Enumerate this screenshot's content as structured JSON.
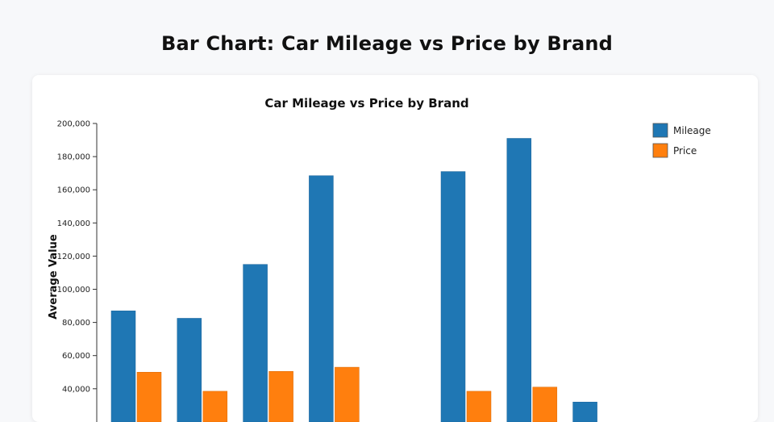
{
  "page": {
    "title": "Bar Chart: Car Mileage vs Price by Brand"
  },
  "chart_data": {
    "type": "bar",
    "title": "Car Mileage vs Price by Brand",
    "ylabel": "Average Value",
    "xlabel": "",
    "ylim": [
      0,
      200000
    ],
    "y_ticks": [
      40000,
      60000,
      80000,
      100000,
      120000,
      140000,
      160000,
      180000,
      200000
    ],
    "y_tick_labels": [
      "40,000",
      "60,000",
      "80,000",
      "100,000",
      "120,000",
      "140,000",
      "160,000",
      "180,000",
      "200,000"
    ],
    "grid": false,
    "legend_position": "top-right",
    "colors": {
      "Mileage": "#1f77b4",
      "Price": "#ff7f0e"
    },
    "series": [
      {
        "name": "Mileage",
        "values": [
          87000,
          82500,
          115000,
          168500,
          null,
          171000,
          191000,
          32000
        ]
      },
      {
        "name": "Price",
        "values": [
          50000,
          38500,
          50500,
          53000,
          null,
          38500,
          41000,
          null
        ]
      }
    ]
  }
}
